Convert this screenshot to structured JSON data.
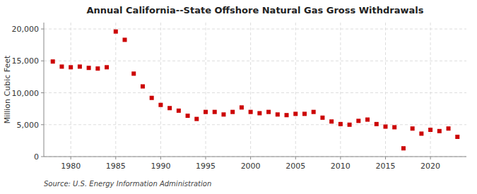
{
  "chart_data": {
    "type": "scatter",
    "title": "Annual California--State Offshore Natural Gas Gross Withdrawals",
    "y_label": "Million Cubic Feet",
    "annotations": [
      "Source: U.S. Energy Information Administration"
    ],
    "x": [
      1978,
      1979,
      1980,
      1981,
      1982,
      1983,
      1984,
      1985,
      1986,
      1987,
      1988,
      1989,
      1990,
      1991,
      1992,
      1993,
      1994,
      1995,
      1996,
      1997,
      1998,
      1999,
      2000,
      2001,
      2002,
      2003,
      2004,
      2005,
      2006,
      2007,
      2008,
      2009,
      2010,
      2011,
      2012,
      2013,
      2014,
      2015,
      2016,
      2017,
      2018,
      2019,
      2020,
      2021,
      2022,
      2023
    ],
    "values": [
      14900,
      14100,
      14000,
      14100,
      13900,
      13800,
      14000,
      19600,
      18300,
      13000,
      11000,
      9200,
      8100,
      7600,
      7200,
      6400,
      5900,
      7000,
      7000,
      6600,
      7000,
      7700,
      7000,
      6800,
      7000,
      6600,
      6500,
      6700,
      6700,
      7000,
      6100,
      5500,
      5100,
      5000,
      5600,
      5800,
      5100,
      4700,
      4600,
      1300,
      4400,
      3600,
      4200,
      4000,
      4400,
      3100
    ],
    "color": "#cc0000",
    "marker": "square",
    "xlim": [
      1977,
      2024
    ],
    "ylim": [
      0,
      21000
    ],
    "xticks": [
      1980,
      1985,
      1990,
      1995,
      2000,
      2005,
      2010,
      2015,
      2020
    ],
    "yticks": [
      0,
      {
        "value": 5000,
        "label": "5,000"
      },
      {
        "value": 10000,
        "label": "10,000"
      },
      {
        "value": 15000,
        "label": "15,000"
      },
      {
        "value": 20000,
        "label": "20,000"
      }
    ],
    "grid": true
  }
}
